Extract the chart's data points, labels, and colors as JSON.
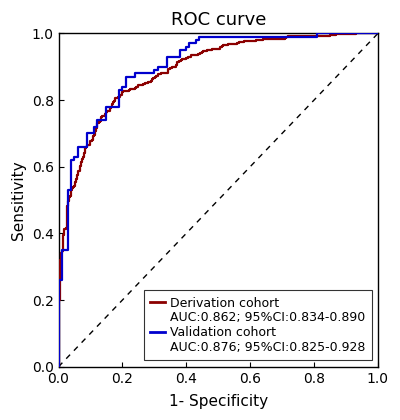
{
  "title": "ROC curve",
  "xlabel": "1- Specificity",
  "ylabel": "Sensitivity",
  "xlim": [
    0.0,
    1.0
  ],
  "ylim": [
    0.0,
    1.0
  ],
  "xticks": [
    0.0,
    0.2,
    0.4,
    0.6,
    0.8,
    1.0
  ],
  "yticks": [
    0.0,
    0.2,
    0.4,
    0.6,
    0.8,
    1.0
  ],
  "derivation_color": "#8B0000",
  "validation_color": "#0000CD",
  "diagonal_color": "black",
  "legend_labels": [
    "Derivation cohort",
    "AUC:0.862; 95%CI:0.834-0.890",
    "Validation cohort",
    "AUC:0.876; 95%CI:0.825-0.928"
  ],
  "title_fontsize": 13,
  "axis_label_fontsize": 11,
  "tick_fontsize": 10,
  "legend_fontsize": 9,
  "linewidth": 1.6
}
